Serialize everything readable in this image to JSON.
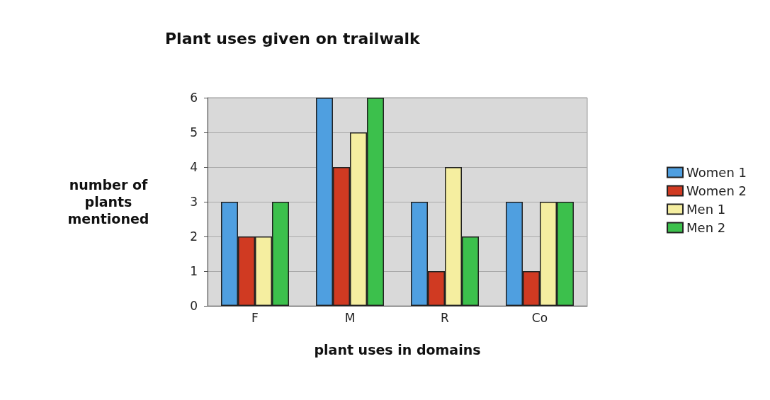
{
  "chart_data": {
    "type": "bar",
    "title": "Plant uses given on trailwalk",
    "xlabel": "plant uses in domains",
    "ylabel": "number of\nplants\nmentioned",
    "categories": [
      "F",
      "M",
      "R",
      "Co"
    ],
    "series": [
      {
        "name": "Women 1",
        "color": "#4f9fe0",
        "values": [
          3,
          6,
          3,
          3
        ]
      },
      {
        "name": "Women 2",
        "color": "#d03a22",
        "values": [
          2,
          4,
          1,
          1
        ]
      },
      {
        "name": "Men 1",
        "color": "#f5eea0",
        "values": [
          2,
          5,
          4,
          3
        ]
      },
      {
        "name": "Men 2",
        "color": "#3cc04c",
        "values": [
          3,
          6,
          2,
          3
        ]
      }
    ],
    "ylim": [
      0,
      6
    ],
    "yticks": [
      0,
      1,
      2,
      3,
      4,
      5,
      6
    ],
    "grid": "y",
    "legend": "right"
  }
}
